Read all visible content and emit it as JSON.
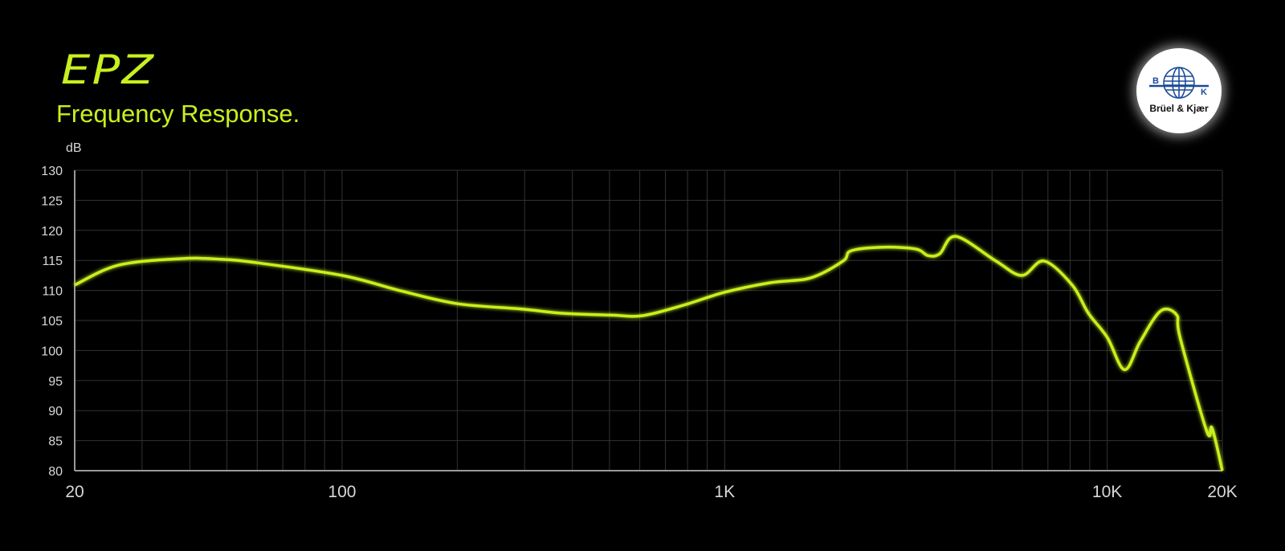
{
  "header": {
    "brand": "EPZ",
    "title": "Frequency Response."
  },
  "logo": {
    "text": "Brüel & Kjær",
    "letters": [
      "B",
      "K"
    ]
  },
  "colors": {
    "curve": "#c8f01e",
    "background": "#000000",
    "grid": "#3a3a3a",
    "axis": "#9a9a9a"
  },
  "chart_data": {
    "type": "line",
    "title": "Frequency Response.",
    "ylabel": "dB",
    "xlabel": "",
    "xscale": "log",
    "xlim": [
      20,
      20000
    ],
    "ylim": [
      80,
      130
    ],
    "grid": true,
    "x_ticks": [
      {
        "value": 20,
        "label": "20"
      },
      {
        "value": 100,
        "label": "100"
      },
      {
        "value": 1000,
        "label": "1K"
      },
      {
        "value": 10000,
        "label": "10K"
      },
      {
        "value": 20000,
        "label": "20K"
      }
    ],
    "y_ticks": [
      130,
      125,
      120,
      115,
      110,
      105,
      100,
      95,
      90,
      85,
      80
    ],
    "series": [
      {
        "x": [
          20,
          26,
          38,
          48,
          60,
          100,
          143,
          200,
          295,
          376,
          503,
          610,
          776,
          1000,
          1320,
          1680,
          2040,
          2140,
          2600,
          3160,
          3400,
          3650,
          4020,
          5120,
          5980,
          6840,
          8100,
          8930,
          10000,
          11100,
          12200,
          13800,
          15200,
          15500,
          18200,
          18800,
          20000
        ],
        "y": [
          110.9,
          114.2,
          115.3,
          115.2,
          114.6,
          112.5,
          109.9,
          107.8,
          106.9,
          106.2,
          105.9,
          105.8,
          107.5,
          109.7,
          111.3,
          112.1,
          114.9,
          116.6,
          117.2,
          116.9,
          115.8,
          116.1,
          119.0,
          114.9,
          112.5,
          114.9,
          110.9,
          106.2,
          102.2,
          96.8,
          101.5,
          106.6,
          105.9,
          102.2,
          86.6,
          87.1,
          80.0
        ]
      }
    ]
  }
}
